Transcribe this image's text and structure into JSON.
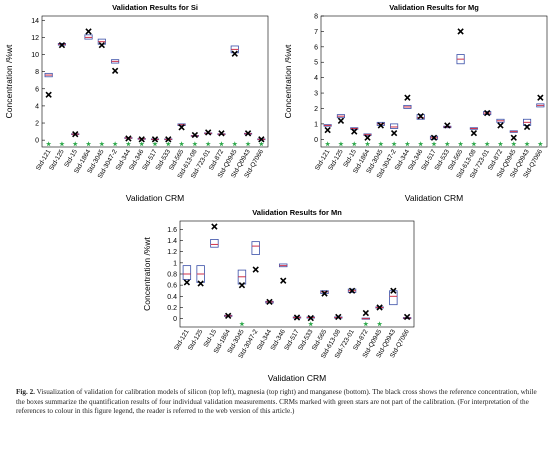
{
  "chart_data": [
    {
      "type": "box",
      "title": "Validation Results for Si",
      "x_label": "Validation CRM",
      "y_label": "Concentration /%wt",
      "categories": [
        "Std-121",
        "Std-125",
        "Std-15",
        "Std-1864",
        "Std-3045",
        "Std-3047-2",
        "Std-344",
        "Std-346",
        "Std-517",
        "Std-533",
        "Std-565",
        "Std-613-08",
        "Std-723-01",
        "Std-872",
        "Std-Q0945",
        "Std-Q0943",
        "Std-Q7066"
      ],
      "q1": [
        7.4,
        11.1,
        0.65,
        11.8,
        11.2,
        9.0,
        0.2,
        0.1,
        0.1,
        0.1,
        1.7,
        0.45,
        0.75,
        0.65,
        10.2,
        0.7,
        0.05
      ],
      "median": [
        7.6,
        11.2,
        0.7,
        12.0,
        11.5,
        9.2,
        0.25,
        0.15,
        0.1,
        0.1,
        1.8,
        0.5,
        0.8,
        0.7,
        10.6,
        0.75,
        0.1
      ],
      "q3": [
        7.8,
        11.3,
        0.75,
        12.3,
        11.8,
        9.4,
        0.3,
        0.2,
        0.15,
        0.15,
        1.9,
        0.55,
        0.85,
        0.75,
        11.0,
        0.8,
        0.15
      ],
      "reference": [
        5.3,
        11.1,
        0.7,
        12.7,
        11.1,
        8.1,
        0.2,
        0.1,
        0.1,
        0.1,
        1.5,
        0.6,
        0.9,
        0.8,
        10.1,
        0.8,
        0.1
      ],
      "not_in_calibration": [
        true,
        true,
        true,
        true,
        true,
        true,
        true,
        true,
        true,
        true,
        true,
        true,
        true,
        true,
        true,
        true,
        true
      ],
      "ylim": [
        -0.8,
        14.5
      ],
      "yticks": [
        0,
        2,
        4,
        6,
        8,
        10,
        12,
        14
      ],
      "box_color": "#3a4fa8",
      "median_color": "#d0324a",
      "star_color": "#2da84a"
    },
    {
      "type": "box",
      "title": "Validation Results for Mg",
      "x_label": "Validation CRM",
      "y_label": "Concentration /%wt",
      "categories": [
        "Std-121",
        "Std-125",
        "Std-15",
        "Std-1864",
        "Std-3045",
        "Std-3047-2",
        "Std-344",
        "Std-346",
        "Std-517",
        "Std-533",
        "Std-565",
        "Std-613-08",
        "Std-723-01",
        "Std-872",
        "Std-Q0945",
        "Std-Q0943",
        "Std-Q7066"
      ],
      "q1": [
        0.85,
        1.4,
        0.65,
        0.25,
        0.9,
        0.7,
        2.0,
        1.3,
        0.0,
        0.75,
        4.9,
        0.65,
        1.6,
        1.1,
        0.45,
        0.9,
        2.1
      ],
      "median": [
        0.9,
        1.5,
        0.7,
        0.3,
        1.0,
        0.8,
        2.1,
        1.4,
        0.1,
        0.8,
        5.2,
        0.7,
        1.7,
        1.2,
        0.5,
        1.1,
        2.2
      ],
      "q3": [
        0.95,
        1.6,
        0.75,
        0.35,
        1.1,
        1.0,
        2.2,
        1.6,
        0.2,
        0.85,
        5.5,
        0.75,
        1.8,
        1.3,
        0.55,
        1.3,
        2.3
      ],
      "reference": [
        0.6,
        1.2,
        0.5,
        0.1,
        0.9,
        0.4,
        2.7,
        1.5,
        0.1,
        0.9,
        7.0,
        0.4,
        1.7,
        0.9,
        0.1,
        0.8,
        2.7
      ],
      "not_in_calibration": [
        true,
        true,
        true,
        true,
        true,
        true,
        true,
        true,
        true,
        true,
        true,
        true,
        true,
        true,
        true,
        true,
        true
      ],
      "ylim": [
        -0.5,
        8
      ],
      "yticks": [
        0,
        1,
        2,
        3,
        4,
        5,
        6,
        7,
        8
      ],
      "box_color": "#3a4fa8",
      "median_color": "#d0324a",
      "star_color": "#2da84a"
    },
    {
      "type": "box",
      "title": "Validation Results for Mn",
      "x_label": "Validation CRM",
      "y_label": "Concentration /%wt",
      "categories": [
        "Std-121",
        "Std-125",
        "Std-15",
        "Std-1864",
        "Std-3045",
        "Std-3047-2",
        "Std-344",
        "Std-346",
        "Std-517",
        "Std-533",
        "Std-565",
        "Std-613-08",
        "Std-723-01",
        "Std-872",
        "Std-Q0945",
        "Std-Q0943",
        "Std-Q7066"
      ],
      "q1": [
        0.7,
        0.65,
        1.28,
        0.04,
        0.62,
        1.15,
        0.28,
        0.93,
        0.01,
        0.01,
        0.45,
        0.01,
        0.47,
        -0.01,
        0.19,
        0.25,
        0.0
      ],
      "median": [
        0.8,
        0.8,
        1.33,
        0.05,
        0.75,
        1.3,
        0.3,
        0.95,
        0.02,
        0.02,
        0.48,
        0.02,
        0.5,
        0.0,
        0.2,
        0.4,
        0.01
      ],
      "q3": [
        0.95,
        0.95,
        1.42,
        0.06,
        0.87,
        1.38,
        0.31,
        0.98,
        0.03,
        0.03,
        0.5,
        0.03,
        0.53,
        0.01,
        0.21,
        0.5,
        0.02
      ],
      "reference": [
        0.65,
        0.63,
        1.65,
        0.05,
        0.6,
        0.88,
        0.3,
        0.68,
        0.02,
        0.01,
        0.45,
        0.03,
        0.5,
        0.1,
        0.2,
        0.5,
        0.03
      ],
      "not_in_calibration": [
        false,
        false,
        false,
        false,
        true,
        false,
        false,
        false,
        false,
        true,
        false,
        false,
        false,
        true,
        true,
        false,
        false
      ],
      "ylim": [
        -0.15,
        1.75
      ],
      "yticks": [
        0,
        0.2,
        0.4,
        0.6,
        0.8,
        1,
        1.2,
        1.4,
        1.6
      ],
      "box_color": "#3a4fa8",
      "median_color": "#d0324a",
      "star_color": "#2da84a"
    }
  ],
  "caption": {
    "label": "Fig. 2.",
    "text": "Visualization of validation for calibration models of silicon (top left), magnesia (top right) and manganese (bottom). The black cross shows the reference concentration, while the boxes summarize the quantification results of four individual validation measurements. CRMs marked with green stars are not part of the calibration. (For interpretation of the references to colour in this figure legend, the reader is referred to the web version of this article.)"
  }
}
